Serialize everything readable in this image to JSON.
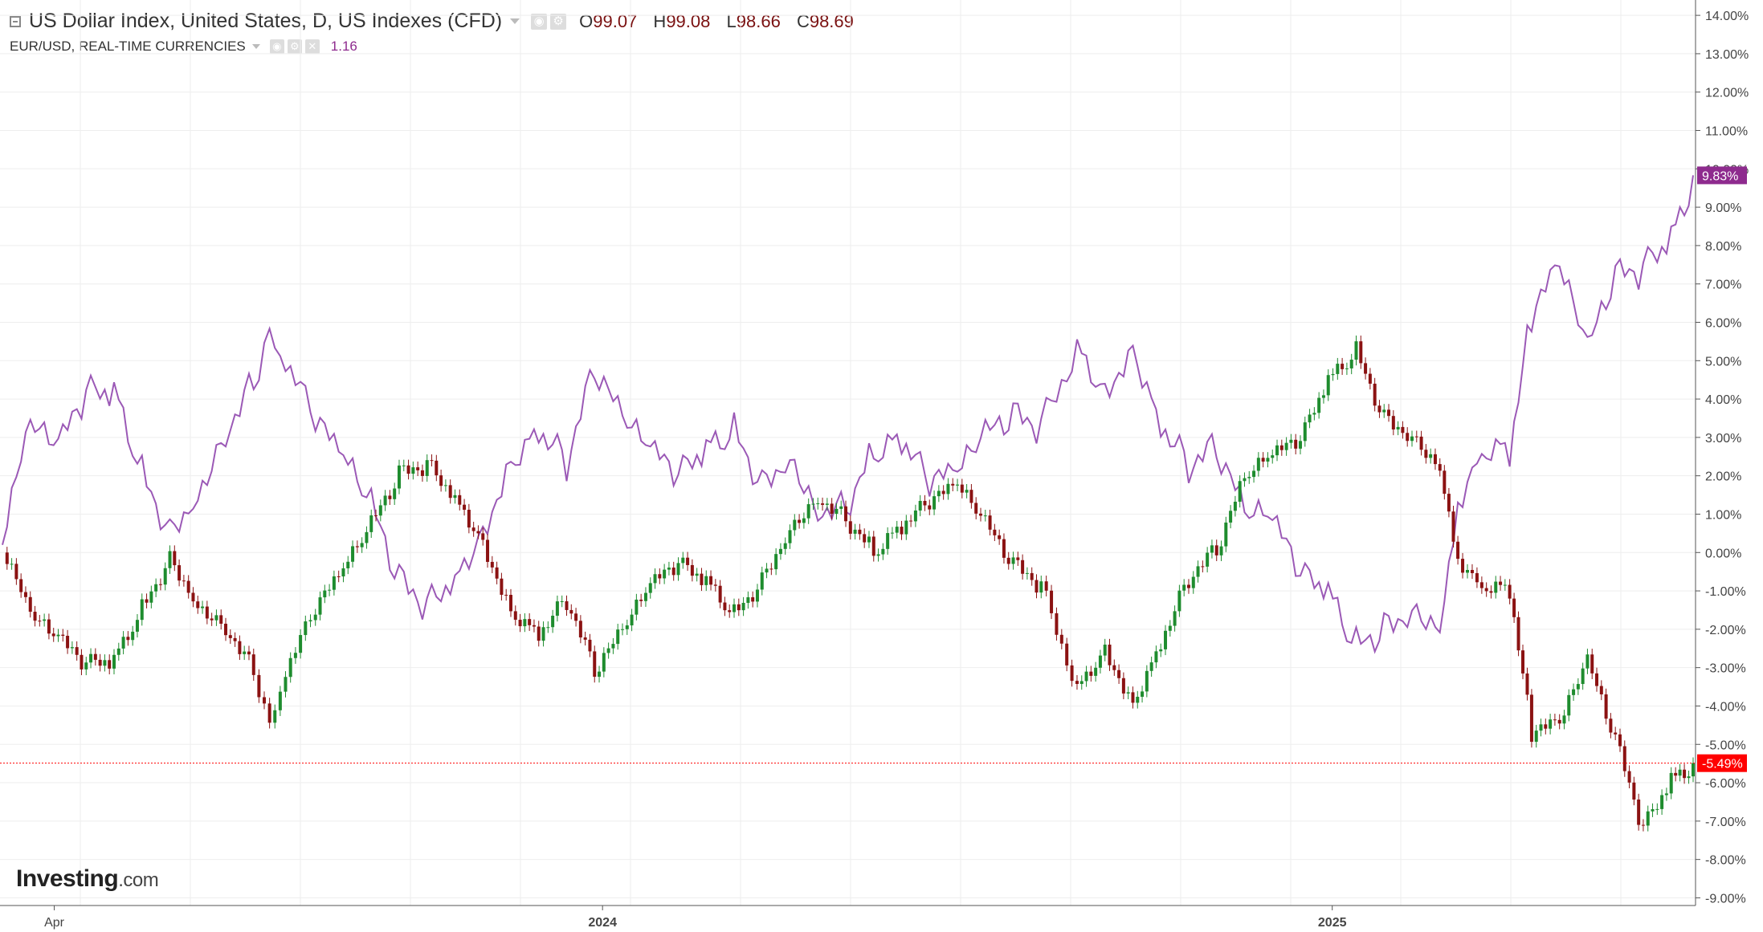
{
  "header": {
    "dxy_title": "US Dollar Index, United States, D, US Indexes (CFD)",
    "ohlc": [
      {
        "key": "O",
        "value": "99.07"
      },
      {
        "key": "H",
        "value": "99.08"
      },
      {
        "key": "L",
        "value": "98.66"
      },
      {
        "key": "C",
        "value": "98.69"
      }
    ],
    "eur_title": "EUR/USD, REAL-TIME CURRENCIES",
    "eur_value": "1.16"
  },
  "icons": {
    "collapse": "collapse-icon",
    "dropdown": "chevron-down-icon",
    "eye": "eye-icon",
    "settings": "gear-icon",
    "close": "close-icon"
  },
  "logo": {
    "main": "Investing",
    "suffix": ".com"
  },
  "colors": {
    "up_candle": "#1e8c2e",
    "down_candle": "#8b1212",
    "eur_line": "#9b59b6",
    "eur_badge": "#8e2b8e",
    "dxy_badge": "#ff0000",
    "axis_text": "#444444",
    "grid": "#eeeeee"
  },
  "chart_data": {
    "type": "line",
    "title": "US Dollar Index, United States, D, US Indexes (CFD)",
    "y_unit": "% change",
    "ylim": [
      -9,
      14
    ],
    "y_ticks": [
      "14.00%",
      "13.00%",
      "12.00%",
      "11.00%",
      "10.00%",
      "9.00%",
      "8.00%",
      "7.00%",
      "6.00%",
      "5.00%",
      "4.00%",
      "3.00%",
      "2.00%",
      "1.00%",
      "0.00%",
      "-1.00%",
      "-2.00%",
      "-3.00%",
      "-4.00%",
      "-5.00%",
      "-6.00%",
      "-7.00%",
      "-8.00%",
      "-9.00%"
    ],
    "x_labels": [
      {
        "label": "Apr",
        "date": "2023-04-01"
      },
      {
        "label": "2024",
        "date": "2024-01-01"
      },
      {
        "label": "2025",
        "date": "2025-01-01"
      }
    ],
    "x_range": [
      "2023-03-06",
      "2025-07-01"
    ],
    "grid": true,
    "series": [
      {
        "name": "EUR/USD, REAL-TIME CURRENCIES",
        "style": "line",
        "last_label": "9.83%",
        "points": [
          [
            "2023-03-06",
            0.2
          ],
          [
            "2023-03-20",
            3.0
          ],
          [
            "2023-04-03",
            2.5
          ],
          [
            "2023-04-17",
            4.0
          ],
          [
            "2023-05-01",
            4.2
          ],
          [
            "2023-05-15",
            2.2
          ],
          [
            "2023-05-29",
            0.8
          ],
          [
            "2023-06-12",
            1.8
          ],
          [
            "2023-06-26",
            3.4
          ],
          [
            "2023-07-10",
            4.6
          ],
          [
            "2023-07-18",
            5.9
          ],
          [
            "2023-07-26",
            4.8
          ],
          [
            "2023-08-10",
            3.2
          ],
          [
            "2023-08-24",
            2.2
          ],
          [
            "2023-09-07",
            1.0
          ],
          [
            "2023-09-21",
            -0.8
          ],
          [
            "2023-10-05",
            -1.2
          ],
          [
            "2023-10-19",
            -0.4
          ],
          [
            "2023-11-02",
            0.8
          ],
          [
            "2023-11-16",
            2.6
          ],
          [
            "2023-11-30",
            3.4
          ],
          [
            "2023-12-14",
            2.4
          ],
          [
            "2023-12-28",
            4.6
          ],
          [
            "2024-01-11",
            3.2
          ],
          [
            "2024-01-25",
            2.4
          ],
          [
            "2024-02-08",
            1.8
          ],
          [
            "2024-02-22",
            2.6
          ],
          [
            "2024-03-07",
            3.2
          ],
          [
            "2024-03-21",
            2.0
          ],
          [
            "2024-04-04",
            2.8
          ],
          [
            "2024-04-18",
            1.4
          ],
          [
            "2024-05-02",
            1.4
          ],
          [
            "2024-05-16",
            2.6
          ],
          [
            "2024-05-30",
            2.8
          ],
          [
            "2024-06-13",
            1.6
          ],
          [
            "2024-06-27",
            1.8
          ],
          [
            "2024-07-11",
            2.8
          ],
          [
            "2024-07-25",
            3.4
          ],
          [
            "2024-08-08",
            3.4
          ],
          [
            "2024-08-26",
            5.6
          ],
          [
            "2024-09-09",
            4.4
          ],
          [
            "2024-09-23",
            5.6
          ],
          [
            "2024-10-07",
            3.6
          ],
          [
            "2024-10-21",
            2.4
          ],
          [
            "2024-11-04",
            2.6
          ],
          [
            "2024-11-18",
            0.8
          ],
          [
            "2024-12-02",
            0.6
          ],
          [
            "2024-12-16",
            -0.8
          ],
          [
            "2024-12-30",
            -1.2
          ],
          [
            "2025-01-13",
            -2.5
          ],
          [
            "2025-01-27",
            -1.8
          ],
          [
            "2025-02-10",
            -1.2
          ],
          [
            "2025-02-24",
            -1.6
          ],
          [
            "2025-03-05",
            1.6
          ],
          [
            "2025-03-17",
            2.8
          ],
          [
            "2025-03-31",
            2.6
          ],
          [
            "2025-04-11",
            6.0
          ],
          [
            "2025-04-25",
            7.2
          ],
          [
            "2025-05-09",
            5.0
          ],
          [
            "2025-05-23",
            7.0
          ],
          [
            "2025-06-06",
            7.4
          ],
          [
            "2025-06-20",
            8.4
          ],
          [
            "2025-07-01",
            9.83
          ]
        ]
      },
      {
        "name": "US Dollar Index, United States, D, US Indexes (CFD)",
        "style": "candles",
        "last_label": "-5.49%",
        "points": [
          [
            "2023-03-06",
            0.0
          ],
          [
            "2023-03-20",
            -1.8
          ],
          [
            "2023-04-03",
            -2.4
          ],
          [
            "2023-04-17",
            -3.0
          ],
          [
            "2023-05-01",
            -2.8
          ],
          [
            "2023-05-15",
            -1.4
          ],
          [
            "2023-05-29",
            0.0
          ],
          [
            "2023-06-12",
            -1.2
          ],
          [
            "2023-06-26",
            -1.8
          ],
          [
            "2023-07-10",
            -3.0
          ],
          [
            "2023-07-18",
            -4.4
          ],
          [
            "2023-07-26",
            -3.2
          ],
          [
            "2023-08-10",
            -1.6
          ],
          [
            "2023-08-24",
            -0.6
          ],
          [
            "2023-09-07",
            0.6
          ],
          [
            "2023-09-21",
            2.0
          ],
          [
            "2023-10-05",
            2.4
          ],
          [
            "2023-10-19",
            1.6
          ],
          [
            "2023-11-02",
            0.4
          ],
          [
            "2023-11-16",
            -1.4
          ],
          [
            "2023-11-30",
            -2.0
          ],
          [
            "2023-12-14",
            -1.2
          ],
          [
            "2023-12-28",
            -3.2
          ],
          [
            "2024-01-11",
            -2.2
          ],
          [
            "2024-01-25",
            -1.0
          ],
          [
            "2024-02-08",
            -0.4
          ],
          [
            "2024-02-22",
            -0.8
          ],
          [
            "2024-03-07",
            -1.6
          ],
          [
            "2024-03-21",
            -0.6
          ],
          [
            "2024-04-04",
            0.8
          ],
          [
            "2024-04-18",
            1.6
          ],
          [
            "2024-05-02",
            1.0
          ],
          [
            "2024-05-16",
            0.0
          ],
          [
            "2024-05-30",
            0.6
          ],
          [
            "2024-06-13",
            1.2
          ],
          [
            "2024-06-27",
            1.6
          ],
          [
            "2024-07-11",
            0.6
          ],
          [
            "2024-07-25",
            -0.4
          ],
          [
            "2024-08-08",
            -0.8
          ],
          [
            "2024-08-26",
            -3.4
          ],
          [
            "2024-09-09",
            -2.4
          ],
          [
            "2024-09-23",
            -3.8
          ],
          [
            "2024-10-07",
            -2.2
          ],
          [
            "2024-10-21",
            -0.6
          ],
          [
            "2024-11-04",
            0.0
          ],
          [
            "2024-11-18",
            1.8
          ],
          [
            "2024-12-02",
            2.4
          ],
          [
            "2024-12-16",
            2.8
          ],
          [
            "2024-12-30",
            4.4
          ],
          [
            "2025-01-13",
            5.2
          ],
          [
            "2025-01-27",
            3.6
          ],
          [
            "2025-02-10",
            3.2
          ],
          [
            "2025-02-24",
            2.4
          ],
          [
            "2025-03-05",
            0.0
          ],
          [
            "2025-03-17",
            -0.8
          ],
          [
            "2025-03-31",
            -1.0
          ],
          [
            "2025-04-11",
            -4.8
          ],
          [
            "2025-04-25",
            -4.6
          ],
          [
            "2025-05-09",
            -3.0
          ],
          [
            "2025-05-23",
            -5.0
          ],
          [
            "2025-06-06",
            -7.2
          ],
          [
            "2025-06-20",
            -5.8
          ],
          [
            "2025-07-01",
            -5.49
          ]
        ]
      }
    ]
  }
}
